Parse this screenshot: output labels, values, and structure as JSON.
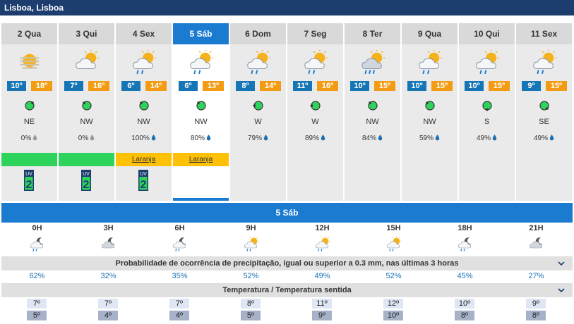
{
  "location": "Lisboa, Lisboa",
  "days": [
    {
      "label": "2 Qua",
      "icon": "hazy-sun-icon",
      "min": "10º",
      "max": "18º",
      "wind_dir": "NE",
      "wind_angle": 225,
      "precip": "0%",
      "drop_color": "#999999",
      "warning": "",
      "warning_color": "#2ed35c",
      "uv": "2",
      "selected": false
    },
    {
      "label": "3 Qui",
      "icon": "partly-cloudy-icon",
      "min": "7º",
      "max": "16º",
      "wind_dir": "NW",
      "wind_angle": 135,
      "precip": "0%",
      "drop_color": "#999999",
      "warning": "",
      "warning_color": "#2ed35c",
      "uv": "2",
      "selected": false
    },
    {
      "label": "4 Sex",
      "icon": "sun-cloud-rain-icon",
      "min": "6º",
      "max": "14º",
      "wind_dir": "NW",
      "wind_angle": 135,
      "precip": "100%",
      "drop_color": "#1a6fb3",
      "warning": "Laranja",
      "warning_color": "#ffc107",
      "uv": "2",
      "selected": false
    },
    {
      "label": "5 Sáb",
      "icon": "sun-cloud-rain-icon",
      "min": "6º",
      "max": "13º",
      "wind_dir": "NW",
      "wind_angle": 135,
      "precip": "80%",
      "drop_color": "#1a6fb3",
      "warning": "Laranja",
      "warning_color": "#ffc107",
      "uv": "",
      "selected": true
    },
    {
      "label": "6 Dom",
      "icon": "sun-cloud-rain-icon",
      "min": "8º",
      "max": "14º",
      "wind_dir": "W",
      "wind_angle": 90,
      "precip": "79%",
      "drop_color": "#1a6fb3",
      "warning": "",
      "warning_color": "",
      "uv": "",
      "selected": false
    },
    {
      "label": "7 Seg",
      "icon": "sun-cloud-rain-icon",
      "min": "11º",
      "max": "16º",
      "wind_dir": "W",
      "wind_angle": 90,
      "precip": "89%",
      "drop_color": "#1a6fb3",
      "warning": "",
      "warning_color": "",
      "uv": "",
      "selected": false
    },
    {
      "label": "8 Ter",
      "icon": "sun-cloud-showers-icon",
      "min": "10º",
      "max": "15º",
      "wind_dir": "NW",
      "wind_angle": 135,
      "precip": "84%",
      "drop_color": "#1a6fb3",
      "warning": "",
      "warning_color": "",
      "uv": "",
      "selected": false
    },
    {
      "label": "9 Qua",
      "icon": "sun-cloud-rain-icon",
      "min": "10º",
      "max": "15º",
      "wind_dir": "NW",
      "wind_angle": 135,
      "precip": "59%",
      "drop_color": "#1a6fb3",
      "warning": "",
      "warning_color": "",
      "uv": "",
      "selected": false
    },
    {
      "label": "10 Qui",
      "icon": "sun-cloud-rain-icon",
      "min": "10º",
      "max": "15º",
      "wind_dir": "S",
      "wind_angle": 0,
      "precip": "49%",
      "drop_color": "#1a6fb3",
      "warning": "",
      "warning_color": "",
      "uv": "",
      "selected": false
    },
    {
      "label": "11 Sex",
      "icon": "sun-cloud-rain-icon",
      "min": "9º",
      "max": "15º",
      "wind_dir": "SE",
      "wind_angle": 315,
      "precip": "49%",
      "drop_color": "#1a6fb3",
      "warning": "",
      "warning_color": "",
      "uv": "",
      "selected": false
    }
  ],
  "uv_label": "UV",
  "detail": {
    "title": "5 Sáb",
    "hours": [
      {
        "label": "0H",
        "icon": "moon-cloud-rain-icon",
        "prob": "62%",
        "temp": "7º",
        "feel": "5º"
      },
      {
        "label": "3H",
        "icon": "moon-cloud-icon",
        "prob": "32%",
        "temp": "7º",
        "feel": "4º"
      },
      {
        "label": "6H",
        "icon": "moon-cloud-rain-icon",
        "prob": "35%",
        "temp": "7º",
        "feel": "4º"
      },
      {
        "label": "9H",
        "icon": "sun-cloud-rain-icon",
        "prob": "52%",
        "temp": "8º",
        "feel": "5º"
      },
      {
        "label": "12H",
        "icon": "sun-cloud-rain-icon",
        "prob": "49%",
        "temp": "11º",
        "feel": "9º"
      },
      {
        "label": "15H",
        "icon": "sun-cloud-rain-icon",
        "prob": "52%",
        "temp": "12º",
        "feel": "10º"
      },
      {
        "label": "18H",
        "icon": "moon-cloud-rain-icon",
        "prob": "45%",
        "temp": "10º",
        "feel": "8º"
      },
      {
        "label": "21H",
        "icon": "moon-cloud-icon",
        "prob": "27%",
        "temp": "9º",
        "feel": "8º"
      }
    ],
    "precip_title": "Probabilidade de ocorrência de precipitação, igual ou superior a 0.3 mm, nas últimas 3 horas",
    "temp_title": "Temperatura / Temperatura sentida"
  },
  "colors": {
    "header": "#1c3d6e",
    "accent": "#1a7bd1",
    "min_temp": "#1575b5",
    "max_temp": "#f39c13"
  }
}
